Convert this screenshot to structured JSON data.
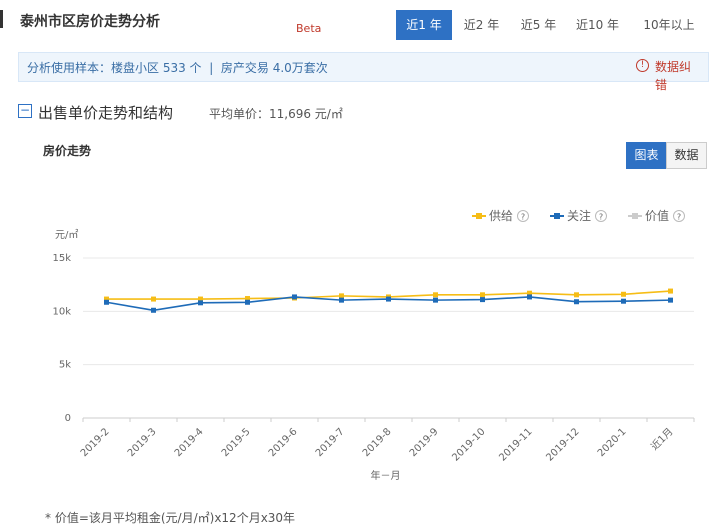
{
  "header": {
    "title": "泰州市区房价走势分析",
    "beta": "Beta",
    "tabs": [
      "近1 年",
      "近2 年",
      "近5 年",
      "近10 年",
      "10年以上"
    ],
    "active_tab": 0
  },
  "sample_bar": {
    "label": "分析使用样本：",
    "projects": "楼盘小区 533 个",
    "separator": "|",
    "transactions": "房产交易 4.0万套次",
    "report_error": "数据纠错"
  },
  "section": {
    "title": "出售单价走势和结构",
    "average_price": "平均单价：11,696 元/㎡"
  },
  "chart_panel": {
    "title": "房价走势",
    "view_buttons": [
      "图表",
      "数据"
    ],
    "active_view": 0
  },
  "chart_data": {
    "type": "line",
    "y_unit": "元/㎡",
    "x_label": "年－月",
    "categories": [
      "2019-2",
      "2019-3",
      "2019-4",
      "2019-5",
      "2019-6",
      "2019-7",
      "2019-8",
      "2019-9",
      "2019-10",
      "2019-11",
      "2019-12",
      "2020-1",
      "近1月"
    ],
    "series": [
      {
        "name": "供给",
        "color": "#f6bd16",
        "values": [
          11150,
          11150,
          11150,
          11200,
          11250,
          11450,
          11350,
          11550,
          11550,
          11700,
          11550,
          11600,
          11900
        ]
      },
      {
        "name": "关注",
        "color": "#1e6bb8",
        "values": [
          10850,
          10100,
          10800,
          10850,
          11350,
          11050,
          11150,
          11050,
          11100,
          11350,
          10900,
          10950,
          11050
        ]
      },
      {
        "name": "价值",
        "color": "#cccccc",
        "values": [
          null,
          null,
          null,
          null,
          null,
          null,
          null,
          null,
          null,
          null,
          null,
          null,
          null
        ]
      }
    ],
    "ylim": [
      0,
      15000
    ],
    "yticks": [
      0,
      {
        "value": 5000,
        "label": "5k"
      },
      {
        "value": 10000,
        "label": "10k"
      },
      {
        "value": 15000,
        "label": "15k"
      }
    ],
    "grid": true
  },
  "footnote": "* 价值=该月平均租金(元/月/㎡)x12个月x30年"
}
